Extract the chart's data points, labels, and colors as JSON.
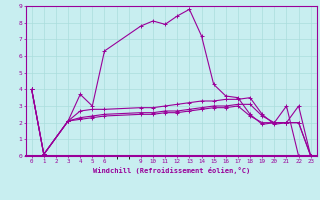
{
  "xlabel": "Windchill (Refroidissement éolien,°C)",
  "bg_color": "#c8eef0",
  "line_color": "#990099",
  "grid_color": "#aadddd",
  "spine_color": "#990099",
  "xlim": [
    -0.5,
    23.5
  ],
  "ylim": [
    0,
    9
  ],
  "xticks": [
    0,
    1,
    2,
    3,
    4,
    5,
    6,
    9,
    10,
    11,
    12,
    13,
    14,
    15,
    16,
    17,
    18,
    19,
    20,
    21,
    22,
    23
  ],
  "yticks": [
    0,
    1,
    2,
    3,
    4,
    5,
    6,
    7,
    8,
    9
  ],
  "series": [
    {
      "x": [
        0,
        1,
        3,
        4,
        5,
        6,
        9,
        10,
        11,
        12,
        13,
        14,
        15,
        16,
        17,
        18,
        19,
        20,
        21,
        22,
        23
      ],
      "y": [
        4.0,
        0.1,
        2.1,
        3.7,
        3.0,
        6.3,
        7.8,
        8.1,
        7.9,
        8.4,
        8.8,
        7.2,
        4.3,
        3.6,
        3.5,
        2.5,
        1.9,
        2.0,
        3.0,
        0,
        0
      ]
    },
    {
      "x": [
        0,
        1,
        3,
        4,
        5,
        6,
        9,
        10,
        11,
        12,
        13,
        14,
        15,
        16,
        17,
        18,
        19,
        20,
        21,
        22,
        23
      ],
      "y": [
        4.0,
        0.1,
        2.1,
        2.7,
        2.8,
        2.8,
        2.9,
        2.9,
        3.0,
        3.1,
        3.2,
        3.3,
        3.3,
        3.4,
        3.4,
        3.5,
        2.5,
        1.9,
        2.0,
        3.0,
        0
      ]
    },
    {
      "x": [
        0,
        1,
        3,
        4,
        5,
        6,
        9,
        10,
        11,
        12,
        13,
        14,
        15,
        16,
        17,
        18,
        19,
        20,
        21,
        22,
        23
      ],
      "y": [
        4.0,
        0.1,
        2.1,
        2.3,
        2.4,
        2.5,
        2.6,
        2.6,
        2.7,
        2.7,
        2.8,
        2.9,
        3.0,
        3.0,
        3.1,
        3.1,
        2.4,
        2.0,
        2.0,
        2.0,
        0
      ]
    },
    {
      "x": [
        0,
        1,
        3,
        4,
        5,
        6,
        9,
        10,
        11,
        12,
        13,
        14,
        15,
        16,
        17,
        18,
        19,
        20,
        21,
        22,
        23
      ],
      "y": [
        4.0,
        0.1,
        2.1,
        2.2,
        2.3,
        2.4,
        2.5,
        2.5,
        2.6,
        2.6,
        2.7,
        2.8,
        2.9,
        2.9,
        3.0,
        2.4,
        2.0,
        2.0,
        2.0,
        2.0,
        0
      ]
    }
  ]
}
